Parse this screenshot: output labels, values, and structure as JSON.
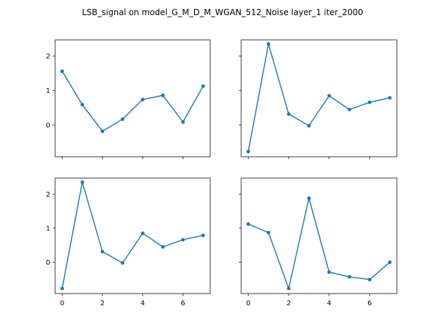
{
  "figure": {
    "title": "LSB_signal on model_G_M_D_M_WGAN_512_Noise layer_1 iter_2000"
  },
  "colors": {
    "line": "#1f77b4",
    "axes": "#000000",
    "background": "#ffffff"
  },
  "chart_data": [
    {
      "type": "line",
      "panel": "top-left",
      "x": [
        0,
        1,
        2,
        3,
        4,
        5,
        6,
        7
      ],
      "y": [
        1.56,
        0.59,
        -0.18,
        0.17,
        0.74,
        0.86,
        0.09,
        1.13
      ],
      "xticks": [
        0,
        2,
        4,
        6
      ],
      "xtick_labels_visible": false,
      "yticks": [
        0,
        1,
        2
      ],
      "ytick_labels_visible": true,
      "xlim": [
        -0.35,
        7.35
      ],
      "ylim": [
        -0.92,
        2.47
      ],
      "marker": "dot",
      "grid": false
    },
    {
      "type": "line",
      "panel": "top-right",
      "x": [
        0,
        1,
        2,
        3,
        4,
        5,
        6,
        7
      ],
      "y": [
        -0.77,
        2.35,
        0.32,
        -0.02,
        0.85,
        0.45,
        0.66,
        0.79
      ],
      "xticks": [
        0,
        2,
        4,
        6
      ],
      "xtick_labels_visible": false,
      "yticks": [
        0,
        1,
        2
      ],
      "ytick_labels_visible": false,
      "xlim": [
        -0.35,
        7.35
      ],
      "ylim": [
        -0.92,
        2.47
      ],
      "marker": "dot",
      "grid": false
    },
    {
      "type": "line",
      "panel": "bottom-left",
      "x": [
        0,
        1,
        2,
        3,
        4,
        5,
        6,
        7
      ],
      "y": [
        -0.77,
        2.35,
        0.31,
        -0.02,
        0.85,
        0.45,
        0.66,
        0.79
      ],
      "xticks": [
        0,
        2,
        4,
        6
      ],
      "xtick_labels_visible": true,
      "yticks": [
        0,
        1,
        2
      ],
      "ytick_labels_visible": true,
      "xlim": [
        -0.35,
        7.35
      ],
      "ylim": [
        -0.92,
        2.47
      ],
      "marker": "dot",
      "grid": false
    },
    {
      "type": "line",
      "panel": "bottom-right",
      "x": [
        0,
        1,
        2,
        3,
        4,
        5,
        6,
        7
      ],
      "y": [
        1.12,
        0.87,
        -0.77,
        1.88,
        -0.29,
        -0.43,
        -0.51,
        0.0
      ],
      "xticks": [
        0,
        2,
        4,
        6
      ],
      "xtick_labels_visible": true,
      "yticks": [
        0,
        1,
        2
      ],
      "ytick_labels_visible": false,
      "xlim": [
        -0.35,
        7.35
      ],
      "ylim": [
        -0.92,
        2.47
      ],
      "marker": "dot",
      "grid": false
    }
  ]
}
